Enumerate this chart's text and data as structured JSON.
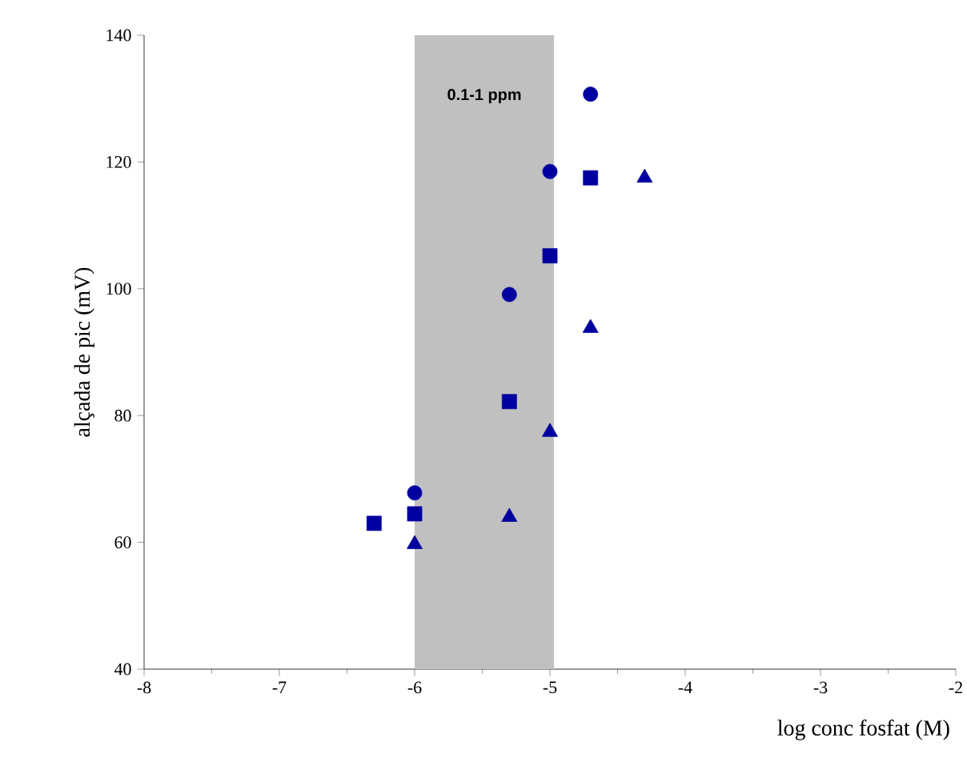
{
  "chart_data": {
    "type": "scatter",
    "xlabel": "log conc fosfat (M)",
    "ylabel": "alçada de pic (mV)",
    "xlim": [
      -8,
      -2
    ],
    "xticks": [
      -8,
      -7,
      -6,
      -5,
      -4,
      -3,
      -2
    ],
    "ylim": [
      40,
      140
    ],
    "yticks": [
      40,
      60,
      80,
      100,
      120,
      140
    ],
    "grid": false,
    "series": [
      {
        "color": "#0000a0",
        "marker": "circle",
        "x": [
          -6,
          -5.3,
          -5,
          -4.7
        ],
        "values": [
          67.8,
          99.1,
          118.5,
          130.7
        ]
      },
      {
        "color": "#0000a0",
        "marker": "square",
        "x": [
          -6.3,
          -6,
          -5.3,
          -5,
          -4.7
        ],
        "values": [
          63,
          64.5,
          82.2,
          105.2,
          117.5
        ]
      },
      {
        "color": "#0000a0",
        "marker": "triangle",
        "x": [
          -6,
          -5.3,
          -5,
          -4.7,
          -4.3
        ],
        "values": [
          59.7,
          64,
          77.4,
          93.8,
          117.5
        ]
      }
    ],
    "bands": [
      {
        "axis": "x",
        "from": -6,
        "to": -4.97,
        "label": "0.1-1 ppm",
        "color": "#c0c0c0"
      }
    ]
  }
}
